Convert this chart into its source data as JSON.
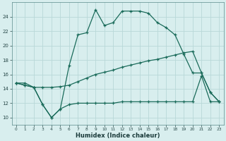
{
  "xlabel": "Humidex (Indice chaleur)",
  "bg_color": "#d8eeee",
  "grid_color": "#b8d8d8",
  "line_color": "#1a6b5a",
  "xlim": [
    -0.5,
    23.5
  ],
  "ylim": [
    9,
    26
  ],
  "xticks": [
    0,
    1,
    2,
    3,
    4,
    5,
    6,
    7,
    8,
    9,
    10,
    11,
    12,
    13,
    14,
    15,
    16,
    17,
    18,
    19,
    20,
    21,
    22,
    23
  ],
  "yticks": [
    10,
    12,
    14,
    16,
    18,
    20,
    22,
    24
  ],
  "series1_x": [
    0,
    1,
    2,
    3,
    4,
    5,
    6,
    7,
    8,
    9,
    10,
    11,
    12,
    13,
    14,
    15,
    16,
    17,
    18,
    19,
    20,
    21,
    22,
    23
  ],
  "series1_y": [
    14.8,
    14.8,
    14.2,
    11.8,
    10.0,
    11.2,
    17.2,
    21.5,
    21.8,
    25.0,
    22.8,
    23.2,
    24.8,
    24.8,
    24.8,
    24.5,
    23.2,
    22.5,
    21.5,
    18.8,
    16.2,
    16.2,
    13.5,
    12.2
  ],
  "series2_x": [
    0,
    1,
    2,
    3,
    4,
    5,
    6,
    7,
    8,
    9,
    10,
    11,
    12,
    13,
    14,
    15,
    16,
    17,
    18,
    19,
    20,
    21,
    22,
    23
  ],
  "series2_y": [
    14.8,
    14.5,
    14.2,
    14.2,
    14.2,
    14.3,
    14.5,
    15.0,
    15.5,
    16.0,
    16.3,
    16.6,
    17.0,
    17.3,
    17.6,
    17.9,
    18.1,
    18.4,
    18.7,
    19.0,
    19.2,
    16.2,
    13.5,
    12.2
  ],
  "series3_x": [
    0,
    1,
    2,
    3,
    4,
    5,
    6,
    7,
    8,
    9,
    10,
    11,
    12,
    13,
    14,
    15,
    16,
    17,
    18,
    19,
    20,
    21,
    22,
    23
  ],
  "series3_y": [
    14.8,
    14.5,
    14.2,
    11.8,
    10.0,
    11.2,
    11.8,
    12.0,
    12.0,
    12.0,
    12.0,
    12.0,
    12.2,
    12.2,
    12.2,
    12.2,
    12.2,
    12.2,
    12.2,
    12.2,
    12.2,
    15.8,
    12.2,
    12.2
  ]
}
